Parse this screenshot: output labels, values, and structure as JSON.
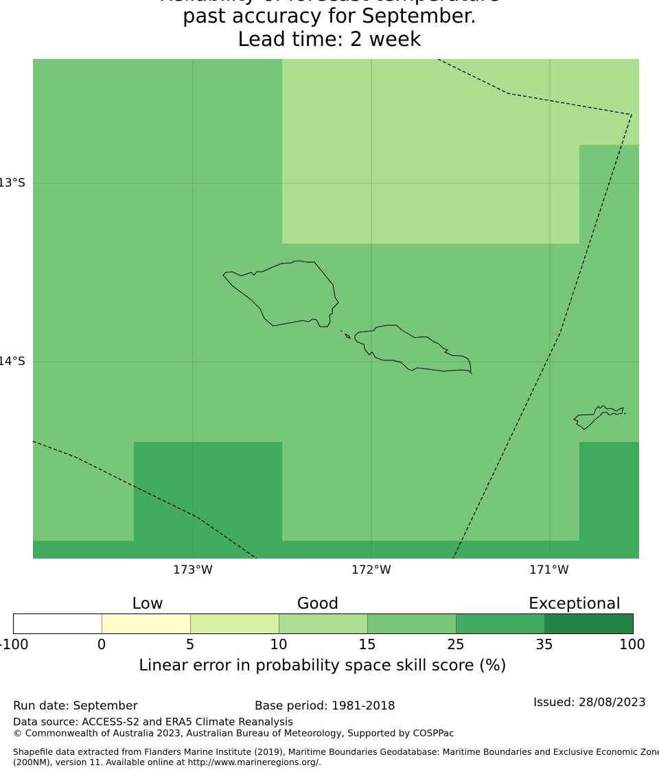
{
  "header": {
    "title_line1": "Reliability of forecast temperature",
    "title_line2": "past accuracy for September.",
    "title_line3": "Lead time: 2 week"
  },
  "map": {
    "lat_labels": [
      "13°S",
      "14°S"
    ],
    "lon_labels": [
      "173°W",
      "172°W",
      "171°W"
    ],
    "extent": {
      "lon_min": -173.9,
      "lon_max": -170.5,
      "lat_min": -15.1,
      "lat_max": -12.3
    },
    "features": [
      "Samoa coastline (Savai'i, Upolu, Manono, Apolima)",
      "Tutuila coastline",
      "EEZ maritime boundary"
    ]
  },
  "legend": {
    "categories": [
      "Low",
      "Good",
      "Exceptional"
    ],
    "ticks": [
      "-100",
      "0",
      "5",
      "10",
      "15",
      "25",
      "35",
      "100"
    ],
    "colors": [
      "#ffffff",
      "#ffffcc",
      "#d9f0a3",
      "#addd8e",
      "#78c679",
      "#41ab5d",
      "#238443"
    ],
    "label": "Linear error in probability space skill score (%)"
  },
  "footer": {
    "run_date": "Run date: September",
    "base_period": "Base period: 1981-2018",
    "issued": "Issued: 28/08/2023",
    "data_source": "Data source: ACCESS-S2 and ERA5 Climate Reanalysis",
    "copyright": "© Commonwealth of Australia 2023, Australian Bureau of Meteorology, Supported by COSPPac",
    "shapefile_line1": "Shapefile data extracted from Flanders Marine Institute (2019), Maritime Boundaries Geodatabase: Maritime Boundaries and Exclusive Economic Zones",
    "shapefile_line2": "(200NM), version 11. Available online at http://www.marineregions.org/."
  }
}
